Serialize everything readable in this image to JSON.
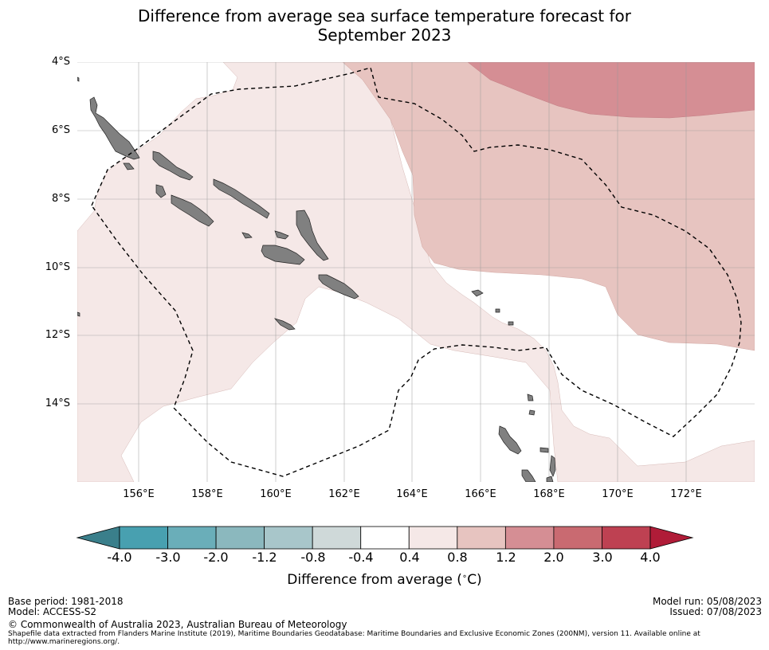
{
  "title": {
    "line1": "Difference from average sea surface temperature forecast for",
    "line2": "September 2023"
  },
  "map": {
    "lat_labels": [
      "4°S",
      "6°S",
      "8°S",
      "10°S",
      "12°S",
      "14°S"
    ],
    "lon_labels": [
      "156°E",
      "158°E",
      "160°E",
      "162°E",
      "164°E",
      "166°E",
      "168°E",
      "170°E",
      "172°E"
    ],
    "colors": {
      "anomaly_0_4_0_8": "#f5e8e7",
      "anomaly_0_8_1_2": "#e7c4c0",
      "anomaly_1_2_2_0": "#d58e94",
      "land": "#808080",
      "grid": "#999999"
    }
  },
  "colorbar": {
    "ticks": [
      "-4.0",
      "-3.0",
      "-2.0",
      "-1.2",
      "-0.8",
      "-0.4",
      "0.4",
      "0.8",
      "1.2",
      "2.0",
      "3.0",
      "4.0"
    ],
    "colors": [
      "#3a7f8b",
      "#48a0b0",
      "#6aaeb9",
      "#8bb8be",
      "#a8c6ca",
      "#cfd9d9",
      "#ffffff",
      "#f5e8e7",
      "#e7c4c0",
      "#d58e94",
      "#c96a71",
      "#be4152",
      "#b01c38"
    ],
    "label": "Difference from average ($^\\circ$C)",
    "label_display": "Difference from average (",
    "label_unit": "∘",
    "label_end": "C)"
  },
  "footer": {
    "base_period": "Base period: 1981-2018",
    "model": "Model: ACCESS-S2",
    "copyright": "© Commonwealth of Australia 2023, Australian Bureau of Meteorology",
    "shapefile": "Shapefile data extracted from Flanders Marine Institute (2019), Maritime Boundaries Geodatabase: Maritime Boundaries and Exclusive Economic Zones (200NM), version 11. Available online at http://www.marineregions.org/.",
    "model_run": "Model run: 05/08/2023",
    "issued": "Issued: 07/08/2023"
  }
}
